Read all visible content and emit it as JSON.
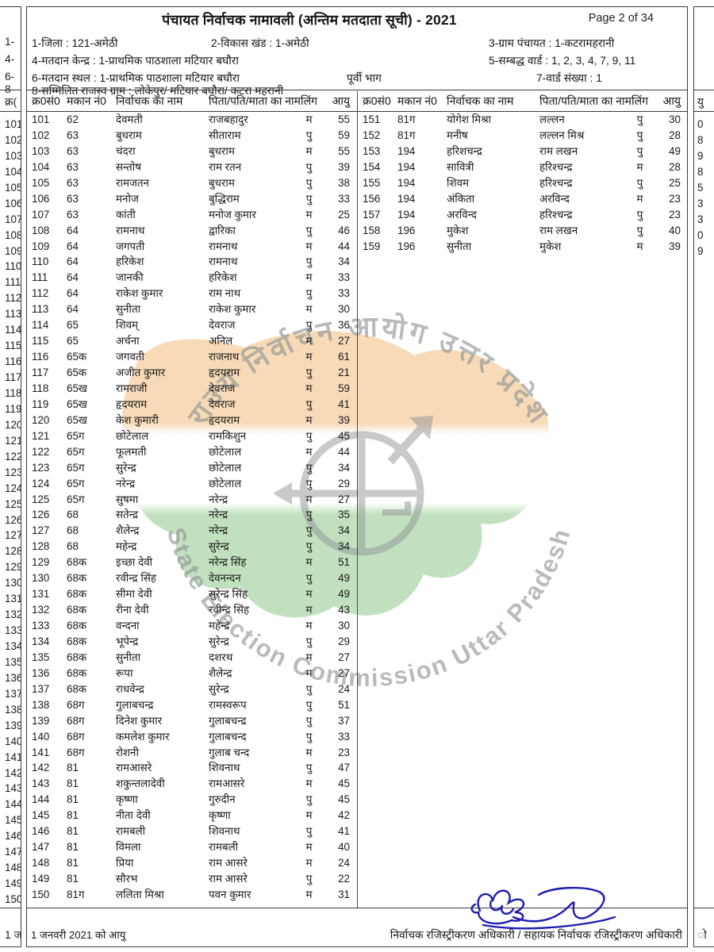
{
  "page": {
    "title": "पंचायत निर्वाचक नामावली (अन्तिम मतदाता सूची) - 2021",
    "page_indicator": "Page 2 of 34"
  },
  "header": {
    "district": "1-जिला : 121-अमेठी",
    "block": "2-विकास खंड : 1-अमेठी",
    "gram_panchayat": "3-ग्राम पंचायत : 1-कटरामहरानी",
    "polling_center": "4-मतदान केन्द्र : 1-प्राथमिक पाठशाला मटियार बघौरा",
    "linked_wards": "5-सम्बद्ध वार्ड :  1, 2, 3, 4, 7, 9, 11",
    "polling_place": "6-मतदान स्थल : 1-प्राथमिक पाठशाला मटियार बघौरा",
    "part_name": "पूर्वी भाग",
    "ward_number": "7-वार्ड संख्या : 1",
    "revenue_villages": "8-सम्मिलित राजस्व ग्राम :  लोकेपुर/ मटियार बघौरा/ कटरा महरानी"
  },
  "table": {
    "columns": [
      "क्र0सं0",
      "मकान नं0",
      "निर्वाचक का नाम",
      "पिता/पति/माता का नाम",
      "लिंग",
      "आयु"
    ],
    "left_rows": [
      [
        "101",
        "62",
        "देवमती",
        "राजबहादुर",
        "म",
        "55"
      ],
      [
        "102",
        "63",
        "बुधराम",
        "सीताराम",
        "पु",
        "59"
      ],
      [
        "103",
        "63",
        "चंदरा",
        "बुधराम",
        "म",
        "55"
      ],
      [
        "104",
        "63",
        "सन्तोष",
        "राम रतन",
        "पु",
        "39"
      ],
      [
        "105",
        "63",
        "रामजतन",
        "बुधराम",
        "पु",
        "38"
      ],
      [
        "106",
        "63",
        "मनोज",
        "बुद्धिराम",
        "पु",
        "33"
      ],
      [
        "107",
        "63",
        "कांती",
        "मनोज कुमार",
        "म",
        "25"
      ],
      [
        "108",
        "64",
        "रामनाथ",
        "द्वारिका",
        "पु",
        "46"
      ],
      [
        "109",
        "64",
        "जगपती",
        "रामनाथ",
        "म",
        "44"
      ],
      [
        "110",
        "64",
        "हरिकेश",
        "रामनाथ",
        "पु",
        "34"
      ],
      [
        "111",
        "64",
        "जानकी",
        "हरिकेश",
        "म",
        "33"
      ],
      [
        "112",
        "64",
        "राकेश कुमार",
        "राम नाथ",
        "पु",
        "33"
      ],
      [
        "113",
        "64",
        "सुनीता",
        "राकेश कुमार",
        "म",
        "30"
      ],
      [
        "114",
        "65",
        "शिवम्",
        "देवराज",
        "पु",
        "36"
      ],
      [
        "115",
        "65",
        "अर्चना",
        "अनिल",
        "म",
        "27"
      ],
      [
        "116",
        "65क",
        "जगवती",
        "राजनाथ",
        "म",
        "61"
      ],
      [
        "117",
        "65क",
        "अजीत कुमार",
        "हृदयराम",
        "पु",
        "21"
      ],
      [
        "118",
        "65ख",
        "रामराजी",
        "देवराज",
        "म",
        "59"
      ],
      [
        "119",
        "65ख",
        "हृदयराम",
        "देवराज",
        "पु",
        "41"
      ],
      [
        "120",
        "65ख",
        "केश कुमारी",
        "हृदयराम",
        "म",
        "39"
      ],
      [
        "121",
        "65ग",
        "छोटेलाल",
        "रामकिशुन",
        "पु",
        "45"
      ],
      [
        "122",
        "65ग",
        "फूलमती",
        "छोटेलाल",
        "म",
        "44"
      ],
      [
        "123",
        "65ग",
        "सुरेन्द्र",
        "छोटेलाल",
        "पु",
        "34"
      ],
      [
        "124",
        "65ग",
        "नरेन्द्र",
        "छोटेलाल",
        "पु",
        "29"
      ],
      [
        "125",
        "65ग",
        "सुषमा",
        "नरेन्द्र",
        "म",
        "27"
      ],
      [
        "126",
        "68",
        "सतेन्द्र",
        "नरेन्द्र",
        "पु",
        "35"
      ],
      [
        "127",
        "68",
        "शैलेन्द्र",
        "नरेन्द्र",
        "पु",
        "34"
      ],
      [
        "128",
        "68",
        "महेन्द्र",
        "सुरेन्द्र",
        "पु",
        "34"
      ],
      [
        "129",
        "68क",
        "इच्छा देवी",
        "नरेन्द्र सिंह",
        "म",
        "51"
      ],
      [
        "130",
        "68क",
        "रवीन्द्र सिंह",
        "देवनन्दन",
        "पु",
        "49"
      ],
      [
        "131",
        "68क",
        "सीमा देवी",
        "सुरेन्द्र सिंह",
        "म",
        "49"
      ],
      [
        "132",
        "68क",
        "रीना देवी",
        "रवीन्द्र सिंह",
        "म",
        "43"
      ],
      [
        "133",
        "68क",
        "वन्दना",
        "महेन्द्र",
        "म",
        "30"
      ],
      [
        "134",
        "68क",
        "भूपेन्द्र",
        "सुरेन्द्र",
        "पु",
        "29"
      ],
      [
        "135",
        "68क",
        "सुनीता",
        "दशरथ",
        "म",
        "27"
      ],
      [
        "136",
        "68क",
        "रूपा",
        "शैलेन्द्र",
        "म",
        "27"
      ],
      [
        "137",
        "68क",
        "राधवेन्द्र",
        "सुरेन्द्र",
        "पु",
        "24"
      ],
      [
        "138",
        "68ग",
        "गुलाबचन्द्र",
        "रामस्वरूप",
        "पु",
        "51"
      ],
      [
        "139",
        "68ग",
        "दिनेश कुमार",
        "गुलाबचन्द्र",
        "पु",
        "37"
      ],
      [
        "140",
        "68ग",
        "कमलेश कुमार",
        "गुलाबचन्द",
        "पु",
        "33"
      ],
      [
        "141",
        "68ग",
        "रोशनी",
        "गुलाब चन्द",
        "म",
        "23"
      ],
      [
        "142",
        "81",
        "रामआसरे",
        "शिवनाथ",
        "पु",
        "47"
      ],
      [
        "143",
        "81",
        "शकुन्तलादेवी",
        "रामआसरे",
        "म",
        "45"
      ],
      [
        "144",
        "81",
        "कृष्णा",
        "गुरुदीन",
        "पु",
        "45"
      ],
      [
        "145",
        "81",
        "नीता देवी",
        "कृष्णा",
        "म",
        "42"
      ],
      [
        "146",
        "81",
        "रामबली",
        "शिवनाथ",
        "पु",
        "41"
      ],
      [
        "147",
        "81",
        "विमला",
        "रामबली",
        "म",
        "40"
      ],
      [
        "148",
        "81",
        "प्रिया",
        "राम आसरे",
        "म",
        "24"
      ],
      [
        "149",
        "81",
        "सौरभ",
        "राम आसरे",
        "पु",
        "22"
      ],
      [
        "150",
        "81ग",
        "ललिता मिश्रा",
        "पवन कुमार",
        "म",
        "31"
      ]
    ],
    "right_rows": [
      [
        "151",
        "81ग",
        "योगेश मिश्रा",
        "लल्लन",
        "पु",
        "30"
      ],
      [
        "152",
        "81ग",
        "मनीष",
        "लल्लन मिश्र",
        "पु",
        "28"
      ],
      [
        "153",
        "194",
        "हरिशचन्द्र",
        "राम लखन",
        "पु",
        "49"
      ],
      [
        "154",
        "194",
        "सावित्री",
        "हरिश्चन्द्र",
        "म",
        "28"
      ],
      [
        "155",
        "194",
        "शिवम",
        "हरिश्चन्द्र",
        "पु",
        "25"
      ],
      [
        "156",
        "194",
        "अंकिता",
        "अरविन्द",
        "म",
        "23"
      ],
      [
        "157",
        "194",
        "अरविन्द",
        "हरिश्चन्द्र",
        "पु",
        "23"
      ],
      [
        "158",
        "196",
        "मुकेश",
        "राम लखन",
        "पु",
        "40"
      ],
      [
        "159",
        "196",
        "सुनीता",
        "मुकेश",
        "म",
        "39"
      ]
    ]
  },
  "watermark": {
    "arc_top": "राज्य निर्वाचन आयोग उत्तर प्रदेश",
    "arc_bottom": "State Election Commission Uttar Pradesh",
    "saffron_color": "#f6d4aa",
    "green_color": "#b6dcb2",
    "gray_color": "#8e9296"
  },
  "footer": {
    "age_note": "1 जनवरी 2021 को आयु",
    "officer_line": "निर्वाचक रजिस्ट्रीकरण अधिकारी / सहायक निर्वाचक रजिस्ट्रीकरण अधिकारी"
  },
  "slivers": {
    "left": {
      "l1": "1-",
      "l2": "4-",
      "l3": "6-",
      "l4": "8-",
      "head": "क्र(",
      "footer": "1 ज"
    },
    "right": {
      "head": "यु",
      "footer": "ो"
    }
  }
}
